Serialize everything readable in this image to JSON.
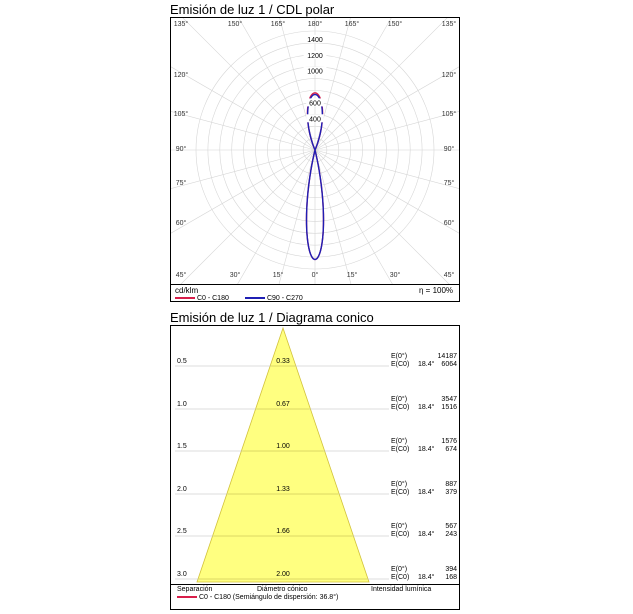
{
  "polar": {
    "title": "Emisión de luz 1 / CDL polar",
    "unit_label": "cd/klm",
    "efficiency": "η = 100%",
    "legend": [
      {
        "label": "C0 - C180",
        "color": "#d81e4a"
      },
      {
        "label": "C90 - C270",
        "color": "#1f1fb4"
      }
    ]
  },
  "conic": {
    "title": "Emisión de luz 1 / Diagrama conico",
    "footer": {
      "separation": "Separación",
      "diameter": "Diámetro cónico",
      "intensity": "Intensidad lumínica",
      "legend_label": "C0 - C180 (Semiángulo de dispersión: 36.8°)",
      "legend_color": "#d81e4a"
    }
  },
  "chart_data": [
    {
      "type": "polar",
      "title": "Emisión de luz 1 / CDL polar",
      "unit": "cd/klm",
      "radial_ticks": [
        400,
        600,
        1000,
        1200,
        1400
      ],
      "rmax": 1500,
      "top_angle_labels": [
        "135°",
        "150°",
        "165°",
        "180°",
        "165°",
        "150°",
        "135°"
      ],
      "side_angle_labels": [
        "120°",
        "105°",
        "90°",
        "75°",
        "60°"
      ],
      "bottom_angle_labels": [
        "45°",
        "30°",
        "15°",
        "0°",
        "15°",
        "30°",
        "45°"
      ],
      "series": [
        {
          "name": "C0 - C180",
          "color": "#d81e4a",
          "lower_peak_cd_klm": 1380,
          "lower_half_angle_deg": 14,
          "upper_peak_cd_klm": 720,
          "upper_half_angle_deg": 24
        },
        {
          "name": "C90 - C270",
          "color": "#1f1fb4",
          "lower_peak_cd_klm": 1380,
          "lower_half_angle_deg": 14,
          "upper_peak_cd_klm": 700,
          "upper_half_angle_deg": 24
        }
      ]
    },
    {
      "type": "table",
      "title": "Emisión de luz 1 / Diagrama conico",
      "half_angle_deg": 36.8,
      "columns": [
        "Separación",
        "Diámetro cónico",
        "Intensidad lumínica"
      ],
      "rows": [
        {
          "separation": "0.5",
          "diameter": "0.33",
          "e0_label": "E(0°)",
          "ec0_label": "E(C0)",
          "angle": "18.4°",
          "e0": "14187",
          "ec0": "6064"
        },
        {
          "separation": "1.0",
          "diameter": "0.67",
          "e0_label": "E(0°)",
          "ec0_label": "E(C0)",
          "angle": "18.4°",
          "e0": "3547",
          "ec0": "1516"
        },
        {
          "separation": "1.5",
          "diameter": "1.00",
          "e0_label": "E(0°)",
          "ec0_label": "E(C0)",
          "angle": "18.4°",
          "e0": "1576",
          "ec0": "674"
        },
        {
          "separation": "2.0",
          "diameter": "1.33",
          "e0_label": "E(0°)",
          "ec0_label": "E(C0)",
          "angle": "18.4°",
          "e0": "887",
          "ec0": "379"
        },
        {
          "separation": "2.5",
          "diameter": "1.66",
          "e0_label": "E(0°)",
          "ec0_label": "E(C0)",
          "angle": "18.4°",
          "e0": "567",
          "ec0": "243"
        },
        {
          "separation": "3.0",
          "diameter": "2.00",
          "e0_label": "E(0°)",
          "ec0_label": "E(C0)",
          "angle": "18.4°",
          "e0": "394",
          "ec0": "168"
        }
      ]
    }
  ]
}
